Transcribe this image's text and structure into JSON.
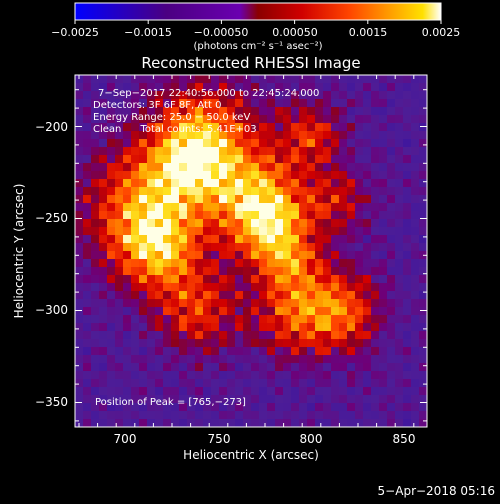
{
  "colorbar": {
    "tick_labels": [
      "−0.0025",
      "−0.0015",
      "−0.00050",
      "0.00050",
      "0.0015",
      "0.0025"
    ],
    "unit_label": "(photons cm⁻² s⁻¹ asec⁻²)"
  },
  "title": "Reconstructed RHESSI Image",
  "info": {
    "line1": "7−Sep−2017 22:40:56.000 to 22:45:24.000",
    "line2": "Detectors: 3F 6F 8F, Att 0",
    "line3": "Energy Range: 25.0 − 50.0 keV",
    "line4": "Clean      Total counts: 5.41E+03"
  },
  "peak_label": "Position of Peak = [765,−273]",
  "xaxis": {
    "label": "Heliocentric X (arcsec)",
    "ticks": [
      {
        "value": 700,
        "text": "700"
      },
      {
        "value": 750,
        "text": "750"
      },
      {
        "value": 800,
        "text": "800"
      },
      {
        "value": 850,
        "text": "850"
      }
    ]
  },
  "yaxis": {
    "label": "Heliocentric Y (arcsec)",
    "ticks": [
      {
        "value": -200,
        "text": "−200"
      },
      {
        "value": -250,
        "text": "−250"
      },
      {
        "value": -300,
        "text": "−300"
      },
      {
        "value": -350,
        "text": "−350"
      }
    ]
  },
  "footer_date": "5−Apr−2018 05:16",
  "colors": {
    "colormap": [
      "#0000ff",
      "#4b0082",
      "#6a00b0",
      "#8b0000",
      "#d00000",
      "#ff4500",
      "#ffa500",
      "#ffe000",
      "#ffffff"
    ],
    "background": "#000000"
  }
}
